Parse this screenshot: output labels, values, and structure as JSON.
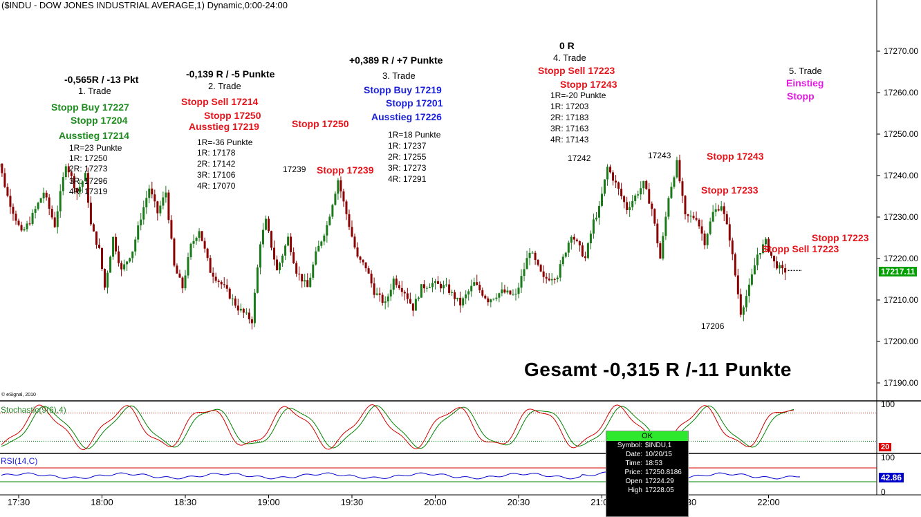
{
  "header": {
    "title": "($INDU - DOW JONES INDUSTRIAL AVERAGE,1) Dynamic,0:00-24:00"
  },
  "watermark": "© eSignal, 2010",
  "colors": {
    "up": "#1a7a1a",
    "down": "#8b0000",
    "stoch_k": "#d00000",
    "stoch_d": "#008000",
    "rsi": "#0000cc",
    "last_price_bg": "#00a000",
    "rsi_value_bg": "#0000cc",
    "stoch_value_bg": "#e00000"
  },
  "chart_data": {
    "type": "candlestick",
    "price_axis": {
      "ticks": [
        17190,
        17200,
        17210,
        17220,
        17230,
        17240,
        17250,
        17260,
        17270
      ],
      "tick_labels": [
        "17190.00",
        "17200.00",
        "17210.00",
        "17220.00",
        "17230.00",
        "17240.00",
        "17250.00",
        "17260.00",
        "17270.00"
      ],
      "range": [
        17186,
        17280
      ]
    },
    "time_axis": {
      "ticks": [
        "17:30",
        "18:00",
        "18:30",
        "19:00",
        "19:30",
        "20:00",
        "20:30",
        "21:00",
        "21:30",
        "22:00"
      ]
    },
    "last_price": "17217.11",
    "dotted_line_level": 17217.1,
    "price_path": [
      [
        "17:20",
        17242
      ],
      [
        "17:24",
        17243
      ],
      [
        "17:27",
        17235
      ],
      [
        "17:32",
        17226
      ],
      [
        "17:35",
        17229
      ],
      [
        "17:40",
        17236
      ],
      [
        "17:44",
        17228
      ],
      [
        "17:48",
        17243
      ],
      [
        "17:52",
        17236
      ],
      [
        "17:55",
        17240
      ],
      [
        "17:57",
        17228
      ],
      [
        "18:00",
        17222
      ],
      [
        "18:02",
        17213
      ],
      [
        "18:05",
        17225
      ],
      [
        "18:08",
        17217
      ],
      [
        "18:12",
        17222
      ],
      [
        "18:15",
        17230
      ],
      [
        "18:18",
        17237
      ],
      [
        "18:21",
        17231
      ],
      [
        "18:24",
        17236
      ],
      [
        "18:27",
        17218
      ],
      [
        "18:30",
        17213
      ],
      [
        "18:33",
        17223
      ],
      [
        "18:36",
        17227
      ],
      [
        "18:40",
        17217
      ],
      [
        "18:45",
        17213
      ],
      [
        "18:50",
        17208
      ],
      [
        "18:55",
        17205
      ],
      [
        "18:58",
        17224
      ],
      [
        "19:00",
        17229
      ],
      [
        "19:04",
        17217
      ],
      [
        "19:08",
        17225
      ],
      [
        "19:11",
        17217
      ],
      [
        "19:15",
        17213
      ],
      [
        "19:18",
        17221
      ],
      [
        "19:22",
        17228
      ],
      [
        "19:26",
        17239
      ],
      [
        "19:30",
        17228
      ],
      [
        "19:33",
        17220
      ],
      [
        "19:36",
        17218
      ],
      [
        "19:39",
        17212
      ],
      [
        "19:43",
        17209
      ],
      [
        "19:46",
        17215
      ],
      [
        "19:50",
        17212
      ],
      [
        "19:53",
        17208
      ],
      [
        "19:56",
        17213
      ],
      [
        "20:00",
        17214
      ],
      [
        "20:05",
        17213
      ],
      [
        "20:10",
        17209
      ],
      [
        "20:15",
        17214
      ],
      [
        "20:20",
        17210
      ],
      [
        "20:25",
        17212
      ],
      [
        "20:30",
        17211
      ],
      [
        "20:35",
        17222
      ],
      [
        "20:40",
        17215
      ],
      [
        "20:45",
        17216
      ],
      [
        "20:50",
        17226
      ],
      [
        "20:55",
        17220
      ],
      [
        "20:58",
        17229
      ],
      [
        "21:00",
        17232
      ],
      [
        "21:03",
        17242
      ],
      [
        "21:06",
        17238
      ],
      [
        "21:10",
        17232
      ],
      [
        "21:13",
        17235
      ],
      [
        "21:16",
        17238
      ],
      [
        "21:19",
        17232
      ],
      [
        "21:22",
        17220
      ],
      [
        "21:25",
        17235
      ],
      [
        "21:28",
        17243
      ],
      [
        "21:31",
        17230
      ],
      [
        "21:35",
        17230
      ],
      [
        "21:38",
        17224
      ],
      [
        "21:41",
        17231
      ],
      [
        "21:44",
        17233
      ],
      [
        "21:47",
        17225
      ],
      [
        "21:51",
        17207
      ],
      [
        "21:54",
        17213
      ],
      [
        "21:57",
        17221
      ],
      [
        "22:00",
        17224
      ],
      [
        "22:03",
        17219
      ],
      [
        "22:06",
        17217
      ]
    ],
    "annotated_levels": {
      "high_1": "17239",
      "high_2": "17242",
      "high_3": "17243",
      "low_1": "17206"
    },
    "stochastic": {
      "label": "Stochastic(9(6),4)",
      "axis_ticks": [
        "100",
        "50"
      ],
      "current_value": "20",
      "overbought": 80,
      "oversold": 20
    },
    "rsi": {
      "label": "RSI(14,C)",
      "axis_ticks": [
        "100",
        "0"
      ],
      "current_value": "42.86",
      "upper": 70,
      "lower": 30
    }
  },
  "annotations": {
    "trade1": {
      "result": "-0,565R / -13 Pkt",
      "name": "1. Trade",
      "stopp_buy": "Stopp Buy 17227",
      "stopp": "Stopp 17204",
      "ausstieg": "Ausstieg 17214",
      "r": "1R=23 Punkte",
      "r1": "1R: 17250",
      "r2": "2R: 17273",
      "r3": "3R: 17296",
      "r4": "4R: 17319"
    },
    "trade2": {
      "result": "-0,139 R / -5 Punkte",
      "name": "2. Trade",
      "stopp_sell": "Stopp Sell 17214",
      "stopp": "Stopp 17250",
      "ausstieg": "Ausstieg 17219",
      "r": "1R=-36 Punkte",
      "r1": "1R: 17178",
      "r2": "2R: 17142",
      "r3": "3R: 17106",
      "r4": "4R: 17070"
    },
    "trade3": {
      "result": "+0,389 R / +7 Punkte",
      "name": "3. Trade",
      "stopp_buy": "Stopp Buy 17219",
      "stopp": "Stopp 17201",
      "ausstieg": "Ausstieg 17226",
      "r": "1R=18 Punkte",
      "r1": "1R: 17237",
      "r2": "2R: 17255",
      "r3": "3R: 17273",
      "r4": "4R: 17291"
    },
    "trade4": {
      "result": "0 R",
      "name": "4. Trade",
      "stopp_sell": "Stopp Sell 17223",
      "stopp": "Stopp 17243",
      "r": "1R=-20 Punkte",
      "r1": "1R: 17203",
      "r2": "2R: 17183",
      "r3": "3R: 17163",
      "r4": "4R: 17143"
    },
    "trade5": {
      "name": "5. Trade",
      "einstieg": "Einstieg",
      "stopp": "Stopp"
    },
    "stopp_17250": "Stopp 17250",
    "stopp_17239": "Stopp 17239",
    "stopp_17243": "Stopp 17243",
    "stopp_17233": "Stopp 17233",
    "stopp_17223": "Stopp 17223",
    "stopp_sell_17223": "Stopp Sell 17223",
    "total": "Gesamt -0,315 R /-11 Punkte"
  },
  "tooltip": {
    "ok": "OK",
    "rows": [
      {
        "k": "Symbol:",
        "v": "$INDU,1"
      },
      {
        "k": "Date:",
        "v": "10/20/15"
      },
      {
        "k": "Time:",
        "v": "18:53"
      },
      {
        "k": "Price:",
        "v": "17250.8186"
      },
      {
        "k": "Open",
        "v": "17224.29"
      },
      {
        "k": "High",
        "v": "17228.05"
      }
    ]
  }
}
